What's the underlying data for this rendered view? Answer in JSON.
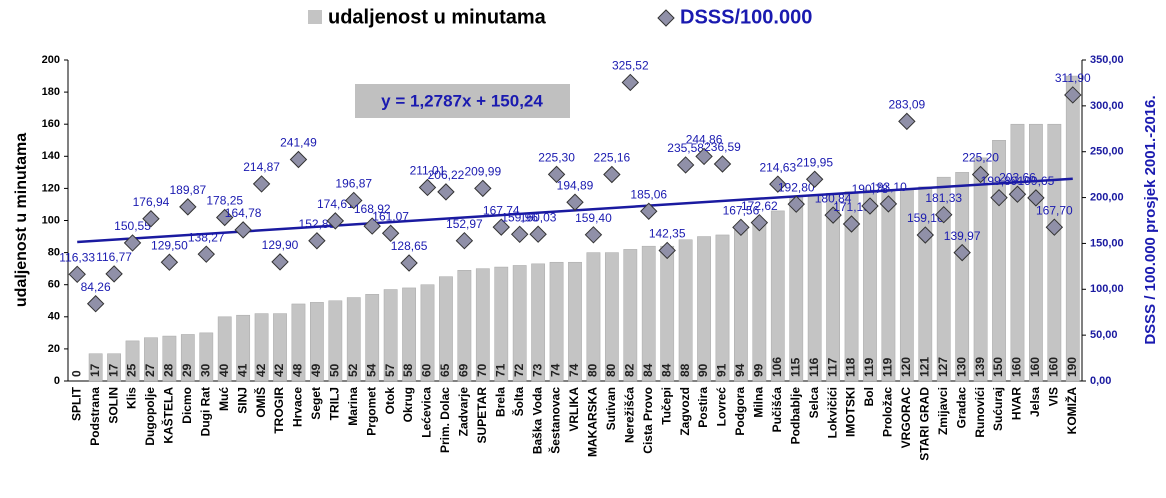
{
  "chart_data": {
    "type": "bar",
    "legend": "top",
    "categories": [
      "SPLIT",
      "Podstrana",
      "SOLIN",
      "Klis",
      "Dugopolje",
      "KAŠTELA",
      "Dicmo",
      "Dugi Rat",
      "Muć",
      "SINJ",
      "OMIŠ",
      "TROGIR",
      "Hrvace",
      "Seget",
      "TRILJ",
      "Marina",
      "Prgomet",
      "Otok",
      "Okrug",
      "Lećevica",
      "Prim. Dolac",
      "Zadvarje",
      "SUPETAR",
      "Brela",
      "Šolta",
      "Baška Voda",
      "Šestanovac",
      "VRLIKA",
      "MAKARSKA",
      "Sutivan",
      "Nerežišća",
      "Cista Provo",
      "Tučepi",
      "Zagvozd",
      "Postira",
      "Lovreć",
      "Podgora",
      "Milna",
      "Pučišća",
      "Podbablje",
      "Selca",
      "Lokvičići",
      "IMOTSKI",
      "Bol",
      "Proložac",
      "VRGORAC",
      "STARI GRAD",
      "Zmijavci",
      "Gradac",
      "Runovići",
      "Sućuraj",
      "HVAR",
      "Jelsa",
      "VIS",
      "KOMIŽA"
    ],
    "series": [
      {
        "name": "udaljenost u minutama",
        "color": "#c4c4c4",
        "values": [
          0,
          17,
          17,
          25,
          27,
          28,
          29,
          30,
          40,
          41,
          42,
          42,
          48,
          49,
          50,
          52,
          54,
          57,
          58,
          60,
          65,
          69,
          70,
          71,
          72,
          73,
          74,
          74,
          80,
          80,
          82,
          84,
          84,
          88,
          90,
          91,
          94,
          99,
          106,
          115,
          116,
          117,
          118,
          119,
          119,
          120,
          121,
          127,
          130,
          139,
          150,
          160,
          160,
          160,
          190
        ]
      },
      {
        "name": "DSSS/100.000",
        "color": "#9090a8",
        "axis": "y2",
        "marker": "diamond",
        "values": [
          116.33,
          84.26,
          116.77,
          150.55,
          176.94,
          129.5,
          189.87,
          138.27,
          178.25,
          164.78,
          214.87,
          129.9,
          241.49,
          152.88,
          174.61,
          196.87,
          168.92,
          161.07,
          128.65,
          211.01,
          206.22,
          152.97,
          209.99,
          167.74,
          159.96,
          160.03,
          225.3,
          194.89,
          159.4,
          225.16,
          325.52,
          185.06,
          142.35,
          235.58,
          244.86,
          236.59,
          167.56,
          172.62,
          214.63,
          192.8,
          219.95,
          180.84,
          171.19,
          190.78,
          193.1,
          283.09,
          159.16,
          181.33,
          139.97,
          225.2,
          199.89,
          203.66,
          199.65,
          167.7,
          311.9
        ],
        "value_labels": [
          "116,33",
          "84,26",
          "116,77",
          "150,55",
          "176,94",
          "129,50",
          "189,87",
          "138,27",
          "178,25",
          "164,78",
          "214,87",
          "129,90",
          "241,49",
          "152,88",
          "174,61",
          "196,87",
          "168,92",
          "161,07",
          "128,65",
          "211,01",
          "206,22",
          "152,97",
          "209,99",
          "167,74",
          "159,96",
          "160,03",
          "225,30",
          "194,89",
          "159,40",
          "225,16",
          "325,52",
          "185,06",
          "142,35",
          "235,58",
          "244,86",
          "236,59",
          "167,56",
          "172,62",
          "214,63",
          "192,80",
          "219,95",
          "180,84",
          "171,19",
          "190,78",
          "193,10",
          "283,09",
          "159,16",
          "181,33",
          "139,97",
          "225,20",
          "199,89",
          "203,66",
          "199,65",
          "167,70",
          "311,90"
        ]
      }
    ],
    "ylabel": "udaljenost u minutama",
    "y2label": "DSSS / 100.000 prosjek 2001.-2016.",
    "ylim": [
      0,
      200
    ],
    "yticks": [
      0,
      20,
      40,
      60,
      80,
      100,
      120,
      140,
      160,
      180,
      200
    ],
    "y2lim": [
      0,
      350
    ],
    "y2ticks": [
      {
        "value": 0,
        "label": "0,00"
      },
      {
        "value": 50,
        "label": "50,00"
      },
      {
        "value": 100,
        "label": "100,00"
      },
      {
        "value": 150,
        "label": "150,00"
      },
      {
        "value": 200,
        "label": "200,00"
      },
      {
        "value": 250,
        "label": "250,00"
      },
      {
        "value": 300,
        "label": "300,00"
      },
      {
        "value": 350,
        "label": "350,00"
      }
    ],
    "trendline": {
      "slope": 1.2787,
      "intercept": 150.24,
      "color": "#1a1aa0",
      "label": "y = 1,2787x + 150,24"
    }
  }
}
